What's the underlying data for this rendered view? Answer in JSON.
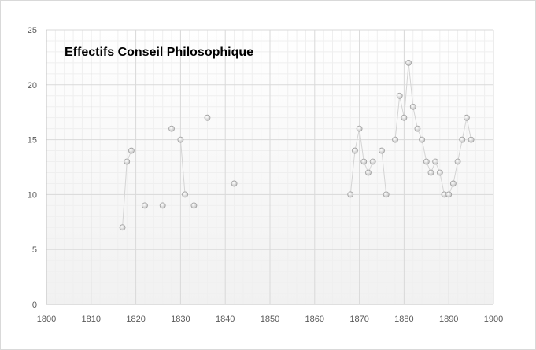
{
  "chart_data": {
    "type": "scatter",
    "title": "Effectifs Conseil Philosophique",
    "xlabel": "",
    "ylabel": "",
    "xlim": [
      1800,
      1900
    ],
    "ylim": [
      0,
      25
    ],
    "x_ticks": [
      "1800",
      "1810",
      "1820",
      "1830",
      "1840",
      "1850",
      "1860",
      "1870",
      "1880",
      "1890",
      "1900"
    ],
    "y_ticks": [
      "0",
      "5",
      "10",
      "15",
      "20",
      "25"
    ],
    "grid": true,
    "legend": "none",
    "colors": {
      "marker": "#c8c8c8",
      "line": "#d4d4d4",
      "grid_major": "#d9d9d9",
      "grid_minor": "#efefef"
    },
    "series": [
      {
        "points": [
          [
            1817,
            7
          ],
          [
            1818,
            13
          ],
          [
            1819,
            14
          ],
          [
            1822,
            9
          ],
          [
            1826,
            9
          ],
          [
            1828,
            16
          ],
          [
            1830,
            15
          ],
          [
            1831,
            10
          ],
          [
            1833,
            9
          ],
          [
            1836,
            17
          ],
          [
            1842,
            11
          ],
          [
            1868,
            10
          ],
          [
            1869,
            14
          ],
          [
            1870,
            16
          ],
          [
            1871,
            13
          ],
          [
            1872,
            12
          ],
          [
            1873,
            13
          ],
          [
            1875,
            14
          ],
          [
            1876,
            10
          ],
          [
            1878,
            15
          ],
          [
            1879,
            19
          ],
          [
            1880,
            17
          ],
          [
            1881,
            22
          ],
          [
            1882,
            18
          ],
          [
            1883,
            16
          ],
          [
            1884,
            15
          ],
          [
            1885,
            13
          ],
          [
            1886,
            12
          ],
          [
            1887,
            13
          ],
          [
            1888,
            12
          ],
          [
            1889,
            10
          ],
          [
            1890,
            10
          ],
          [
            1891,
            11
          ],
          [
            1892,
            13
          ],
          [
            1893,
            15
          ],
          [
            1894,
            17
          ],
          [
            1895,
            15
          ]
        ]
      }
    ]
  }
}
